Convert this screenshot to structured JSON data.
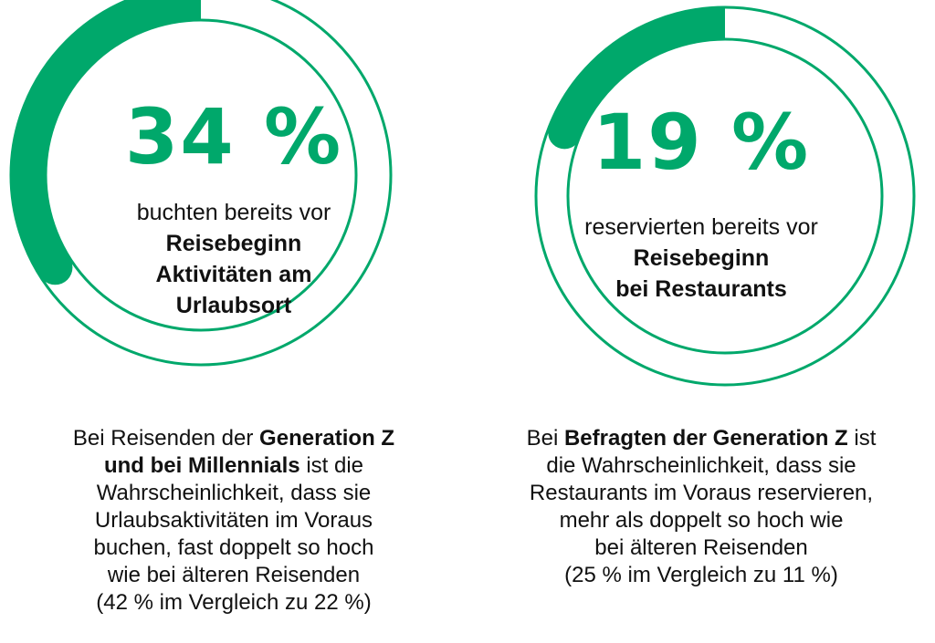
{
  "accent_color": "#00a86b",
  "chart_data": [
    {
      "type": "pie",
      "value_percent": 34,
      "display": {
        "big": "34 %",
        "lines": [
          {
            "text": "buchten bereits vor",
            "bold": false
          },
          {
            "text": "Reisebeginn",
            "bold": true
          },
          {
            "text": "Aktivitäten am",
            "bold": true
          },
          {
            "text": "Urlaubsort",
            "bold": true
          }
        ]
      },
      "caption": [
        [
          {
            "t": "Bei Reisenden der ",
            "b": false
          },
          {
            "t": "Generation Z",
            "b": true
          }
        ],
        [
          {
            "t": "und bei Millennials",
            "b": true
          },
          {
            "t": " ist die",
            "b": false
          }
        ],
        [
          {
            "t": "Wahrscheinlichkeit, dass sie",
            "b": false
          }
        ],
        [
          {
            "t": "Urlaubsaktivitäten im Voraus",
            "b": false
          }
        ],
        [
          {
            "t": "buchen, fast doppelt so hoch",
            "b": false
          }
        ],
        [
          {
            "t": "wie bei älteren Reisenden",
            "b": false
          }
        ],
        [
          {
            "t": "(42 % im Vergleich zu 22 %)",
            "b": false
          }
        ]
      ]
    },
    {
      "type": "pie",
      "value_percent": 19,
      "display": {
        "big": "19 %",
        "lines": [
          {
            "text": "reservierten bereits vor",
            "bold": false
          },
          {
            "text": "Reisebeginn",
            "bold": true
          },
          {
            "text": "bei Restaurants",
            "bold": true
          }
        ]
      },
      "caption": [
        [
          {
            "t": "Bei ",
            "b": false
          },
          {
            "t": "Befragten der Generation Z",
            "b": true
          },
          {
            "t": " ist",
            "b": false
          }
        ],
        [
          {
            "t": "die Wahrscheinlichkeit, dass sie",
            "b": false
          }
        ],
        [
          {
            "t": "Restaurants im Voraus reservieren,",
            "b": false
          }
        ],
        [
          {
            "t": "mehr als doppelt so hoch wie",
            "b": false
          }
        ],
        [
          {
            "t": "bei älteren Reisenden",
            "b": false
          }
        ],
        [
          {
            "t": "(25 % im Vergleich zu 11 %)",
            "b": false
          }
        ]
      ]
    }
  ]
}
